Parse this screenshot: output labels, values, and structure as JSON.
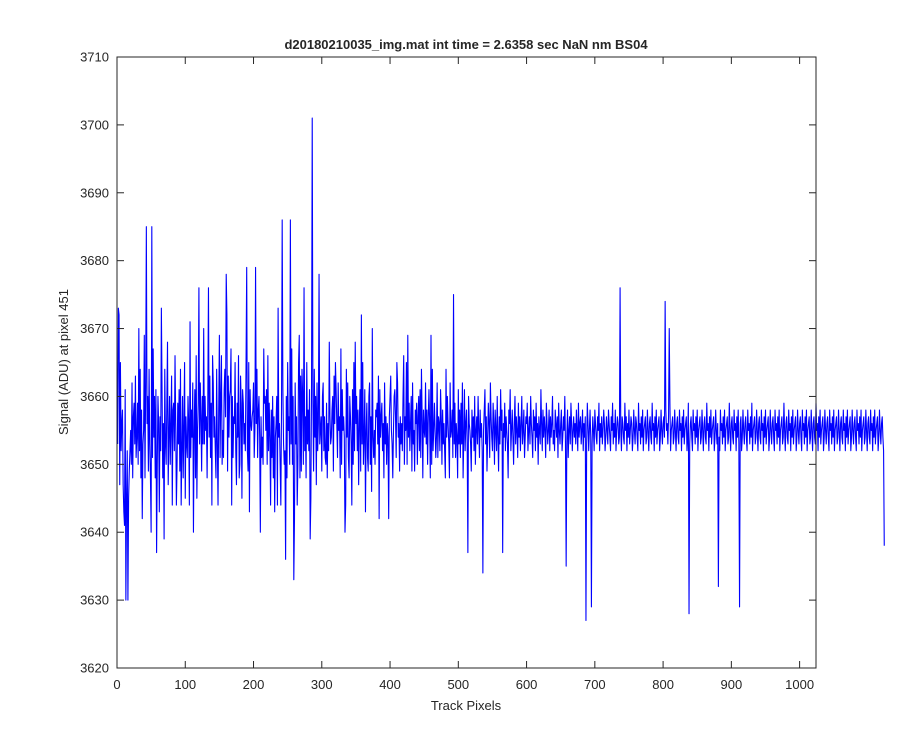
{
  "chart_data": {
    "type": "line",
    "title": "d20180210035_img.mat int time = 2.6358 sec  NaN nm BS04",
    "xlabel": "Track Pixels",
    "ylabel": "Signal (ADU) at pixel 451",
    "xlim": [
      0,
      1024
    ],
    "ylim": [
      3620,
      3710
    ],
    "xticks": [
      0,
      100,
      200,
      300,
      400,
      500,
      600,
      700,
      800,
      900,
      1000
    ],
    "yticks": [
      3620,
      3630,
      3640,
      3650,
      3660,
      3670,
      3680,
      3690,
      3700,
      3710
    ],
    "grid": false,
    "series_color": "#0000ff",
    "series": [
      {
        "values": [
          3653,
          3673,
          3672,
          3647,
          3665,
          3652,
          3656,
          3658,
          3647,
          3643,
          3641,
          3661,
          3630,
          3645,
          3652,
          3650,
          3645,
          3649,
          3652,
          3655,
          3650,
          3662,
          3648,
          3657,
          3659,
          3653,
          3663,
          3651,
          3654,
          3659,
          3650,
          3670,
          3652,
          3664,
          3648,
          3658,
          3642,
          3653,
          3655,
          3669,
          3648,
          3662,
          3685,
          3656,
          3660,
          3649,
          3664,
          3653,
          3648,
          3640,
          3659,
          3651,
          3667,
          3654,
          3660,
          3648,
          3661,
          3637,
          3650,
          3660,
          3656,
          3643,
          3657,
          3652,
          3673,
          3661,
          3648,
          3656,
          3639,
          3664,
          3653,
          3650,
          3659,
          3668,
          3647,
          3654,
          3660,
          3650,
          3656,
          3663,
          3644,
          3658,
          3659,
          3652,
          3666,
          3656,
          3644,
          3650,
          3659,
          3653,
          3661,
          3649,
          3664,
          3644,
          3652,
          3660,
          3648,
          3656,
          3665,
          3645,
          3657,
          3653,
          3651,
          3660,
          3656,
          3644,
          3671,
          3651,
          3658,
          3654,
          3662,
          3640,
          3655,
          3661,
          3648,
          3666,
          3645,
          3655,
          3659,
          3676,
          3653,
          3662,
          3657,
          3649,
          3660,
          3653,
          3670,
          3653,
          3660,
          3655,
          3657,
          3648,
          3659,
          3676,
          3654,
          3663,
          3651,
          3659,
          3644,
          3666,
          3662,
          3654,
          3657,
          3652,
          3648,
          3664,
          3653,
          3644,
          3658,
          3669,
          3651,
          3660,
          3666,
          3650,
          3655,
          3651,
          3661,
          3664,
          3657,
          3678,
          3672,
          3649,
          3663,
          3654,
          3660,
          3661,
          3667,
          3644,
          3660,
          3651,
          3657,
          3656,
          3665,
          3652,
          3647,
          3659,
          3654,
          3666,
          3648,
          3650,
          3663,
          3659,
          3645,
          3661,
          3659,
          3653,
          3656,
          3652,
          3664,
          3656,
          3652,
          3649,
          3665,
          3643,
          3661,
          3656,
          3655,
          3657,
          3658,
          3662,
          3651,
          3655,
          3679,
          3656,
          3664,
          3651,
          3658,
          3660,
          3654,
          3640,
          3657,
          3651,
          3654,
          3650,
          3667,
          3659,
          3660,
          3655,
          3661,
          3650,
          3666,
          3652,
          3659,
          3654,
          3644,
          3658,
          3651,
          3660,
          3648,
          3657,
          3643,
          3654,
          3656,
          3660,
          3644,
          3673,
          3654,
          3656,
          3650,
          3644,
          3658,
          3656,
          3661,
          3653,
          3650,
          3652,
          3636,
          3660,
          3648,
          3665,
          3655,
          3657,
          3650,
          3686,
          3653,
          3667,
          3650,
          3660,
          3654,
          3642,
          3662,
          3653,
          3657,
          3644,
          3650,
          3665,
          3669,
          3648,
          3663,
          3649,
          3664,
          3660,
          3650,
          3676,
          3652,
          3657,
          3648,
          3665,
          3653,
          3658,
          3652,
          3661,
          3639,
          3645,
          3662,
          3650,
          3659,
          3649,
          3664,
          3654,
          3660,
          3647,
          3662,
          3652,
          3656,
          3678,
          3653,
          3655,
          3657,
          3649,
          3660,
          3662,
          3652,
          3657,
          3651,
          3650,
          3659,
          3648,
          3656,
          3652,
          3668,
          3657,
          3653,
          3654,
          3658,
          3660,
          3649,
          3663,
          3656,
          3665,
          3661,
          3656,
          3651,
          3662,
          3655,
          3657,
          3648,
          3667,
          3650,
          3661,
          3655,
          3657,
          3654,
          3640,
          3644,
          3664,
          3654,
          3662,
          3651,
          3648,
          3660,
          3657,
          3653,
          3644,
          3661,
          3650,
          3665,
          3652,
          3668,
          3656,
          3660,
          3652,
          3658,
          3647,
          3656,
          3661,
          3649,
          3672,
          3653,
          3665,
          3650,
          3654,
          3661,
          3643,
          3655,
          3659,
          3651,
          3649,
          3660,
          3662,
          3650,
          3657,
          3646,
          3670,
          3654,
          3651,
          3655,
          3650,
          3658,
          3657,
          3659,
          3653,
          3663,
          3642,
          3661,
          3654,
          3657,
          3659,
          3652,
          3656,
          3648,
          3662,
          3653,
          3657,
          3650,
          3656,
          3654,
          3642,
          3657,
          3660,
          3663,
          3655,
          3653,
          3648,
          3655,
          3660,
          3661,
          3657,
          3651,
          3665,
          3662,
          3654,
          3656,
          3649,
          3657,
          3653,
          3656,
          3652,
          3660,
          3666,
          3650,
          3657,
          3655,
          3665,
          3650,
          3669,
          3654,
          3659,
          3652,
          3656,
          3660,
          3649,
          3662,
          3653,
          3655,
          3649,
          3658,
          3656,
          3659,
          3650,
          3657,
          3660,
          3652,
          3661,
          3651,
          3664,
          3657,
          3648,
          3658,
          3655,
          3654,
          3662,
          3653,
          3658,
          3650,
          3657,
          3661,
          3656,
          3648,
          3669,
          3650,
          3664,
          3652,
          3655,
          3659,
          3655,
          3651,
          3654,
          3662,
          3651,
          3657,
          3656,
          3652,
          3661,
          3657,
          3650,
          3658,
          3653,
          3656,
          3652,
          3648,
          3664,
          3654,
          3660,
          3656,
          3653,
          3648,
          3662,
          3654,
          3655,
          3658,
          3651,
          3657,
          3653,
          3659,
          3651,
          3656,
          3654,
          3648,
          3661,
          3653,
          3658,
          3651,
          3659,
          3653,
          3662,
          3648,
          3654,
          3661,
          3652,
          3656,
          3658,
          3653,
          3637,
          3660,
          3656,
          3655,
          3653,
          3649,
          3658,
          3654,
          3657,
          3652,
          3660,
          3650,
          3655,
          3657,
          3653,
          3660,
          3655,
          3651,
          3658,
          3654,
          3656,
          3652,
          3648,
          3655,
          3658,
          3661,
          3653,
          3657,
          3649,
          3654,
          3659,
          3656,
          3651,
          3662,
          3657,
          3654,
          3652,
          3659,
          3656,
          3650,
          3658,
          3655,
          3652,
          3660,
          3654,
          3649,
          3657,
          3653,
          3661,
          3655,
          3658,
          3651,
          3656,
          3654,
          3659,
          3652,
          3657,
          3655,
          3653,
          3648,
          3658,
          3656,
          3661,
          3652,
          3655,
          3658,
          3654,
          3650,
          3656,
          3660,
          3653,
          3657,
          3655,
          3651,
          3659,
          3654,
          3657,
          3652,
          3656,
          3660,
          3653,
          3655,
          3658,
          3651,
          3654,
          3657,
          3656,
          3659,
          3652,
          3655,
          3657,
          3653,
          3660,
          3656,
          3654,
          3651,
          3658,
          3655,
          3657,
          3652,
          3659,
          3654,
          3656,
          3650,
          3657,
          3655,
          3653,
          3661,
          3656,
          3652,
          3658,
          3654,
          3657,
          3655,
          3651,
          3659,
          3656,
          3653,
          3655,
          3658,
          3652,
          3657,
          3654,
          3656,
          3660,
          3653,
          3655,
          3652,
          3658,
          3656,
          3654,
          3657,
          3651,
          3659,
          3655,
          3653,
          3656,
          3658,
          3652,
          3654,
          3657,
          3655,
          3660,
          3653,
          3656,
          3654,
          3658,
          3651,
          3655,
          3657,
          3653,
          3659,
          3656,
          3652,
          3655,
          3657,
          3654,
          3656,
          3653,
          3658,
          3655,
          3652,
          3659,
          3654,
          3656,
          3657,
          3653,
          3655,
          3658,
          3652,
          3656,
          3654,
          3657,
          3655,
          3653,
          3659,
          3656,
          3652,
          3655,
          3658,
          3654,
          3656,
          3653,
          3657,
          3655,
          3652,
          3658,
          3656,
          3654,
          3653,
          3657,
          3655,
          3659,
          3652,
          3656,
          3654,
          3657,
          3653,
          3655,
          3658,
          3656,
          3652,
          3654,
          3657,
          3655,
          3653,
          3658,
          3656,
          3654,
          3652,
          3657,
          3655,
          3659,
          3653,
          3656,
          3654,
          3658,
          3652,
          3655,
          3657,
          3656,
          3653,
          3654,
          3658,
          3655,
          3652,
          3657,
          3656,
          3654,
          3653,
          3659,
          3655,
          3657,
          3652,
          3656,
          3654,
          3658,
          3653,
          3655,
          3657,
          3656,
          3652,
          3654,
          3658,
          3655,
          3653,
          3657,
          3656,
          3654,
          3652,
          3659,
          3655,
          3656,
          3653,
          3657,
          3654,
          3658,
          3652,
          3655,
          3656,
          3657,
          3653,
          3654,
          3658,
          3655,
          3652,
          3656,
          3657,
          3654,
          3653,
          3659,
          3655,
          3656,
          3652,
          3657,
          3654,
          3658,
          3653,
          3655,
          3656,
          3657,
          3652,
          3654,
          3658,
          3655,
          3653,
          3656,
          3657,
          3654,
          3652,
          3658,
          3655,
          3656,
          3653,
          3657,
          3654,
          3659,
          3652,
          3655,
          3656,
          3657,
          3653,
          3654,
          3658,
          3655,
          3652,
          3656,
          3657,
          3654,
          3653,
          3658,
          3655,
          3656,
          3652,
          3657,
          3654,
          3658,
          3653,
          3655,
          3656,
          3657,
          3652,
          3654,
          3659,
          3655,
          3653,
          3656,
          3657,
          3654,
          3652,
          3658,
          3655,
          3656,
          3653,
          3657,
          3654,
          3658,
          3652,
          3655,
          3656,
          3657,
          3653,
          3654,
          3658,
          3655,
          3652,
          3656,
          3657,
          3654,
          3653,
          3659,
          3655,
          3656,
          3652,
          3657,
          3654,
          3658,
          3653,
          3655,
          3656,
          3657,
          3652,
          3654,
          3658,
          3655,
          3653,
          3656,
          3657,
          3654,
          3652,
          3658,
          3655,
          3656,
          3653,
          3657,
          3654,
          3658,
          3652,
          3655,
          3656,
          3657,
          3653,
          3654,
          3659,
          3655,
          3652,
          3656,
          3657,
          3654,
          3653,
          3658,
          3655,
          3656,
          3652,
          3657,
          3654,
          3658,
          3653,
          3655,
          3656,
          3657,
          3652,
          3654,
          3658,
          3655,
          3653,
          3656,
          3657,
          3654,
          3652,
          3658,
          3655,
          3656,
          3653,
          3657,
          3654,
          3659,
          3652,
          3655,
          3656,
          3657,
          3653,
          3654,
          3658,
          3655,
          3652,
          3656,
          3657,
          3654,
          3653,
          3658,
          3655,
          3656,
          3652,
          3657,
          3654,
          3658,
          3653,
          3655,
          3656,
          3657,
          3652,
          3654,
          3658,
          3655,
          3653,
          3656,
          3657,
          3654,
          3652,
          3658,
          3655,
          3656,
          3653,
          3657,
          3654,
          3658,
          3652,
          3655,
          3656,
          3657,
          3653,
          3654,
          3659,
          3655,
          3652,
          3656,
          3657,
          3654,
          3653,
          3658,
          3655,
          3656,
          3652,
          3657,
          3654,
          3658,
          3653,
          3655,
          3656,
          3657,
          3652,
          3654,
          3658,
          3655,
          3653,
          3656,
          3657,
          3654,
          3652,
          3658,
          3655,
          3656,
          3653,
          3657,
          3654,
          3658,
          3652,
          3655,
          3656,
          3657,
          3653,
          3654,
          3658,
          3655,
          3652,
          3656,
          3657,
          3654,
          3653,
          3659,
          3655,
          3656,
          3652,
          3657,
          3654,
          3658,
          3653,
          3655,
          3656,
          3657,
          3652,
          3654,
          3658,
          3655,
          3653,
          3656,
          3657,
          3654,
          3652,
          3658,
          3655,
          3656,
          3653,
          3657,
          3654,
          3658,
          3652,
          3655,
          3656,
          3657,
          3653,
          3654,
          3658,
          3655,
          3652,
          3656,
          3657,
          3654,
          3653,
          3658,
          3655,
          3656,
          3652,
          3657,
          3654,
          3658,
          3653,
          3655,
          3656,
          3657,
          3652,
          3654,
          3658,
          3655,
          3653,
          3656,
          3657,
          3654,
          3652,
          3658,
          3655,
          3656,
          3653,
          3657,
          3654,
          3658,
          3652,
          3655,
          3656,
          3657,
          3653,
          3654,
          3658,
          3655,
          3652,
          3656,
          3657,
          3654,
          3653,
          3658,
          3655,
          3656,
          3652,
          3657,
          3654,
          3658,
          3653,
          3655,
          3656,
          3657,
          3652,
          3654,
          3658,
          3655,
          3653,
          3656,
          3657,
          3654,
          3652,
          3638
        ]
      }
    ],
    "spikes": [
      {
        "x": 285,
        "y": 3701
      },
      {
        "x": 241,
        "y": 3686
      },
      {
        "x": 50,
        "y": 3685
      },
      {
        "x": 189,
        "y": 3679
      },
      {
        "x": 15,
        "y": 3630
      },
      {
        "x": 258,
        "y": 3633
      },
      {
        "x": 686,
        "y": 3627
      },
      {
        "x": 694,
        "y": 3629
      },
      {
        "x": 837,
        "y": 3628
      },
      {
        "x": 880,
        "y": 3632
      },
      {
        "x": 911,
        "y": 3629
      },
      {
        "x": 564,
        "y": 3637
      },
      {
        "x": 535,
        "y": 3634
      },
      {
        "x": 657,
        "y": 3635
      },
      {
        "x": 802,
        "y": 3674
      },
      {
        "x": 808,
        "y": 3670
      },
      {
        "x": 492,
        "y": 3675
      },
      {
        "x": 736,
        "y": 3676
      },
      {
        "x": 736,
        "y": 3676
      }
    ]
  }
}
